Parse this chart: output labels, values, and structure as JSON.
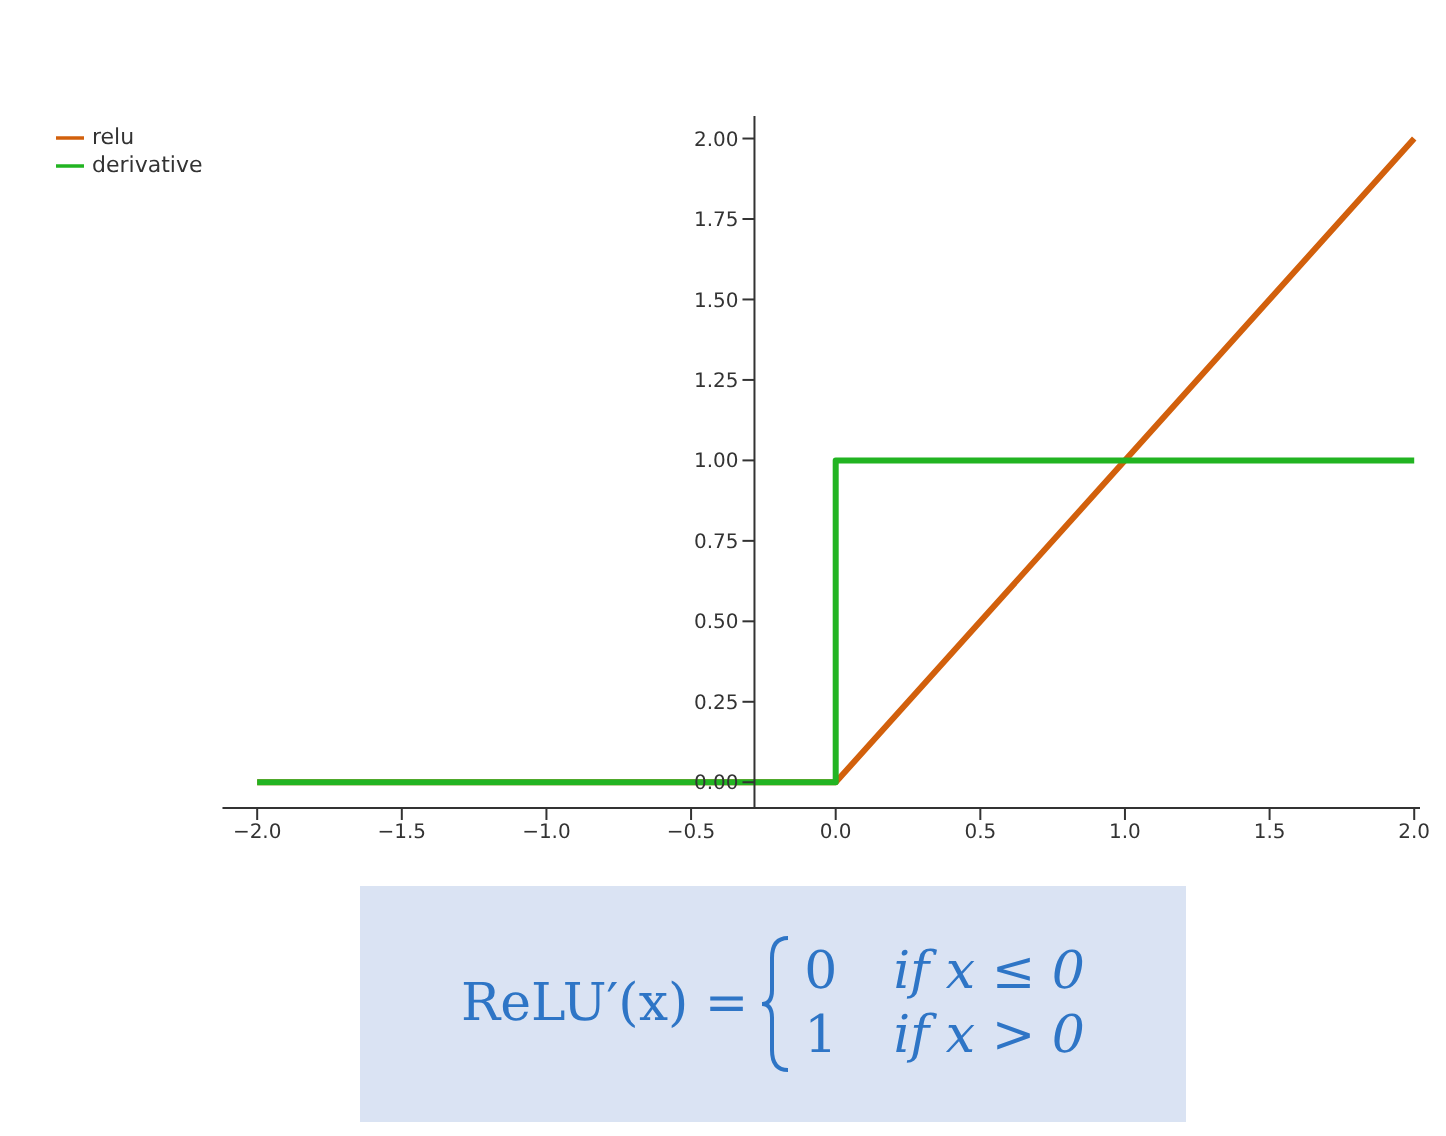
{
  "chart_data": {
    "type": "line",
    "xlim": [
      -2.12,
      2.02
    ],
    "ylim": [
      -0.08,
      2.07
    ],
    "xticks": [
      {
        "value": -2,
        "label": "−2.0"
      },
      {
        "value": -1.5,
        "label": "−1.5"
      },
      {
        "value": -1,
        "label": "−1.0"
      },
      {
        "value": -0.5,
        "label": "−0.5"
      },
      {
        "value": 0,
        "label": "0.0"
      },
      {
        "value": 0.5,
        "label": "0.5"
      },
      {
        "value": 1,
        "label": "1.0"
      },
      {
        "value": 1.5,
        "label": "1.5"
      },
      {
        "value": 2,
        "label": "2.0"
      }
    ],
    "yticks": [
      {
        "value": 0,
        "label": "0.00"
      },
      {
        "value": 0.25,
        "label": "0.25"
      },
      {
        "value": 0.5,
        "label": "0.50"
      },
      {
        "value": 0.75,
        "label": "0.75"
      },
      {
        "value": 1,
        "label": "1.00"
      },
      {
        "value": 1.25,
        "label": "1.25"
      },
      {
        "value": 1.5,
        "label": "1.50"
      },
      {
        "value": 1.75,
        "label": "1.75"
      },
      {
        "value": 2,
        "label": "2.00"
      }
    ],
    "series": [
      {
        "name": "relu",
        "color": "#d2600c",
        "x": [
          -2,
          0,
          2
        ],
        "values": [
          0,
          0,
          2
        ]
      },
      {
        "name": "derivative",
        "color": "#22b422",
        "x": [
          -2,
          0,
          0,
          2
        ],
        "values": [
          0,
          0,
          1,
          1
        ]
      }
    ],
    "grid": false,
    "legend": "top left",
    "marker": "none",
    "line_style": "solid",
    "annotations": [
      "ReLU′(x) =",
      "0",
      "if x ≤ 0",
      "1",
      "if x > 0"
    ]
  }
}
